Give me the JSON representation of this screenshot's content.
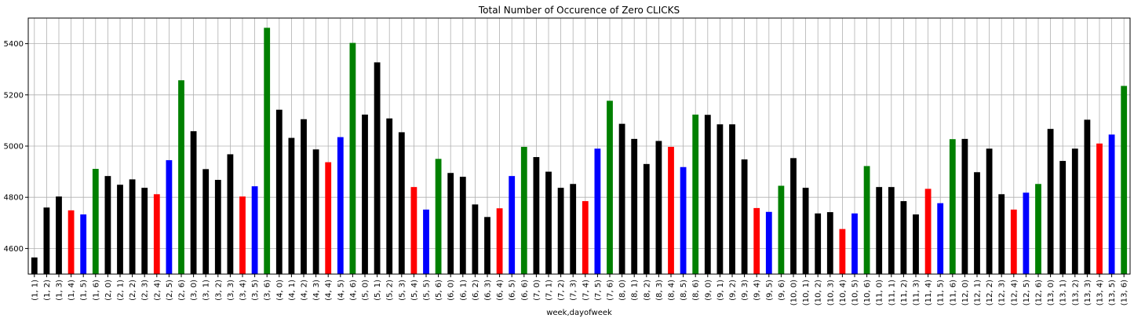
{
  "chart_data": {
    "type": "bar",
    "title": "Total Number of Occurence of Zero CLICKS",
    "xlabel": "week,dayofweek",
    "ylabel": "",
    "ylim": [
      4500,
      5500
    ],
    "yticks": [
      4600,
      4800,
      5000,
      5200,
      5400
    ],
    "grid": true,
    "colors": {
      "black": "#000000",
      "red": "#ff0000",
      "blue": "#0000ff",
      "green": "#008000"
    },
    "categories": [
      "(1, 1)",
      "(1, 2)",
      "(1, 3)",
      "(1, 4)",
      "(1, 5)",
      "(1, 6)",
      "(2, 0)",
      "(2, 1)",
      "(2, 2)",
      "(2, 3)",
      "(2, 4)",
      "(2, 5)",
      "(2, 6)",
      "(3, 0)",
      "(3, 1)",
      "(3, 2)",
      "(3, 3)",
      "(3, 4)",
      "(3, 5)",
      "(3, 6)",
      "(4, 0)",
      "(4, 1)",
      "(4, 2)",
      "(4, 3)",
      "(4, 4)",
      "(4, 5)",
      "(4, 6)",
      "(5, 0)",
      "(5, 1)",
      "(5, 2)",
      "(5, 3)",
      "(5, 4)",
      "(5, 5)",
      "(5, 6)",
      "(6, 0)",
      "(6, 1)",
      "(6, 2)",
      "(6, 3)",
      "(6, 4)",
      "(6, 5)",
      "(6, 6)",
      "(7, 0)",
      "(7, 1)",
      "(7, 2)",
      "(7, 3)",
      "(7, 4)",
      "(7, 5)",
      "(7, 6)",
      "(8, 0)",
      "(8, 1)",
      "(8, 2)",
      "(8, 3)",
      "(8, 4)",
      "(8, 5)",
      "(8, 6)",
      "(9, 0)",
      "(9, 1)",
      "(9, 2)",
      "(9, 3)",
      "(9, 4)",
      "(9, 5)",
      "(9, 6)",
      "(10, 0)",
      "(10, 1)",
      "(10, 2)",
      "(10, 3)",
      "(10, 4)",
      "(10, 5)",
      "(10, 6)",
      "(11, 0)",
      "(11, 1)",
      "(11, 2)",
      "(11, 3)",
      "(11, 4)",
      "(11, 5)",
      "(11, 6)",
      "(12, 0)",
      "(12, 1)",
      "(12, 2)",
      "(12, 3)",
      "(12, 4)",
      "(12, 5)",
      "(12, 6)",
      "(13, 0)",
      "(13, 1)",
      "(13, 2)",
      "(13, 3)",
      "(13, 4)",
      "(13, 5)",
      "(13, 6)"
    ],
    "values": [
      4565,
      4760,
      4803,
      4749,
      4733,
      4911,
      4883,
      4849,
      4870,
      4837,
      4812,
      4945,
      5257,
      5058,
      4910,
      4868,
      4968,
      4803,
      4843,
      5462,
      5142,
      5032,
      5105,
      4987,
      4937,
      5035,
      5403,
      5123,
      5327,
      5108,
      5054,
      4840,
      4752,
      4950,
      4895,
      4880,
      4772,
      4723,
      4757,
      4883,
      4997,
      4957,
      4900,
      4837,
      4852,
      4785,
      4990,
      5177,
      5087,
      5028,
      4930,
      5020,
      4997,
      4918,
      5123,
      5122,
      5085,
      5085,
      4948,
      4758,
      4743,
      4845,
      4953,
      4837,
      4737,
      4742,
      4676,
      4737,
      4922,
      4840,
      4840,
      4785,
      4733,
      4833,
      4777,
      5027,
      5028,
      4898,
      4990,
      4812,
      4752,
      4818,
      4852,
      5067,
      4942,
      4990,
      5103,
      5010,
      5045,
      5235
    ],
    "bar_colors": [
      "black",
      "black",
      "black",
      "red",
      "blue",
      "green",
      "black",
      "black",
      "black",
      "black",
      "red",
      "blue",
      "green",
      "black",
      "black",
      "black",
      "black",
      "red",
      "blue",
      "green",
      "black",
      "black",
      "black",
      "black",
      "red",
      "blue",
      "green",
      "black",
      "black",
      "black",
      "black",
      "red",
      "blue",
      "green",
      "black",
      "black",
      "black",
      "black",
      "red",
      "blue",
      "green",
      "black",
      "black",
      "black",
      "black",
      "red",
      "blue",
      "green",
      "black",
      "black",
      "black",
      "black",
      "red",
      "blue",
      "green",
      "black",
      "black",
      "black",
      "black",
      "red",
      "blue",
      "green",
      "black",
      "black",
      "black",
      "black",
      "red",
      "blue",
      "green",
      "black",
      "black",
      "black",
      "black",
      "red",
      "blue",
      "green",
      "black",
      "black",
      "black",
      "black",
      "red",
      "blue",
      "green",
      "black",
      "black",
      "black",
      "black",
      "red",
      "blue",
      "green"
    ]
  }
}
